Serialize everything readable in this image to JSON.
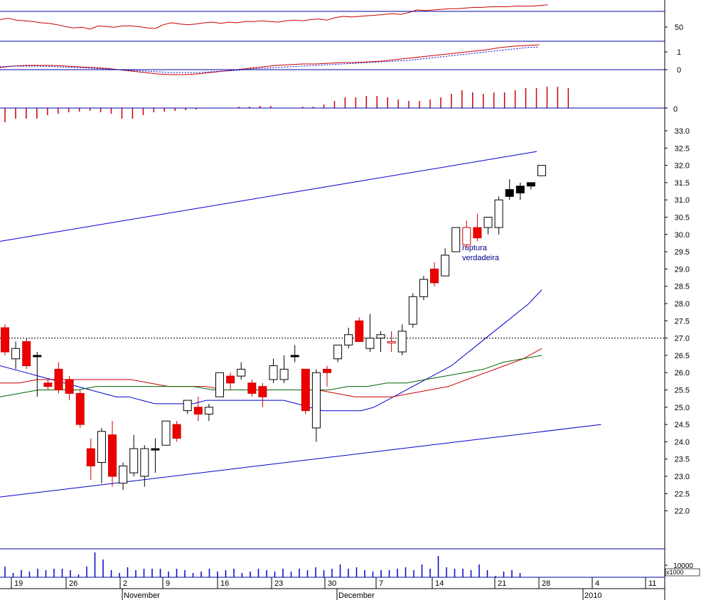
{
  "chart_data": [
    {
      "panel": "rsi",
      "type": "line",
      "yticks": [
        50
      ],
      "series": [
        {
          "values": [
            55,
            57,
            54,
            53,
            52,
            50,
            49,
            47,
            44,
            42,
            43,
            40,
            45,
            44,
            43,
            45,
            45,
            44,
            42,
            41,
            47,
            50,
            48,
            47,
            48,
            50,
            51,
            49,
            51,
            50,
            52,
            52,
            53,
            52,
            51,
            53,
            54,
            53,
            55,
            56,
            54,
            58,
            60,
            59,
            60,
            61,
            62,
            63,
            64,
            63,
            66,
            70,
            69,
            70,
            71,
            72,
            72,
            73,
            74,
            74,
            75,
            75,
            75,
            76,
            76,
            76,
            77,
            78
          ]
        }
      ]
    },
    {
      "panel": "macd",
      "type": "line",
      "yticks": [
        1,
        0
      ],
      "series": [
        {
          "values": [
            0.05,
            0.15,
            0.2,
            0.2,
            0.2,
            0.15,
            0.1,
            0.05,
            0,
            -0.1,
            -0.2,
            -0.3,
            -0.4,
            -0.45,
            -0.45,
            -0.4,
            -0.3,
            -0.2,
            -0.1,
            0,
            0.1,
            0.2,
            0.25,
            0.3,
            0.3,
            0.35,
            0.4,
            0.4,
            0.45,
            0.5,
            0.6,
            0.7,
            0.8,
            0.9,
            1.0,
            1.1,
            1.2,
            1.3,
            1.45,
            1.55,
            1.6,
            1.65
          ]
        },
        {
          "values": [
            0.1,
            0.15,
            0.15,
            0.15,
            0.12,
            0.08,
            0.05,
            0.0,
            -0.05,
            -0.1,
            -0.15,
            -0.2,
            -0.25,
            -0.3,
            -0.3,
            -0.3,
            -0.25,
            -0.2,
            -0.15,
            -0.05,
            0,
            0.05,
            0.1,
            0.15,
            0.2,
            0.25,
            0.3,
            0.35,
            0.4,
            0.45,
            0.5,
            0.55,
            0.65,
            0.75,
            0.85,
            0.95,
            1.05,
            1.15,
            1.25,
            1.35,
            1.45,
            1.5
          ]
        }
      ]
    },
    {
      "panel": "histogram",
      "type": "bar",
      "yticks": [
        0
      ],
      "values": [
        -0.2,
        -0.15,
        -0.15,
        -0.15,
        -0.1,
        -0.08,
        -0.06,
        -0.05,
        -0.04,
        -0.06,
        -0.08,
        -0.15,
        -0.15,
        -0.1,
        -0.06,
        -0.05,
        -0.04,
        -0.03,
        -0.02,
        0,
        0,
        0,
        0.02,
        0.02,
        0.03,
        0.03,
        0,
        0,
        0.02,
        0.02,
        0.05,
        0.1,
        0.15,
        0.15,
        0.17,
        0.17,
        0.15,
        0.12,
        0.1,
        0.1,
        0.12,
        0.15,
        0.2,
        0.25,
        0.22,
        0.2,
        0.22,
        0.22,
        0.25,
        0.28,
        0.28,
        0.3,
        0.3,
        0.28
      ]
    },
    {
      "panel": "price",
      "type": "candlestick",
      "ylim": [
        21.8,
        33.2
      ],
      "yticks": [
        "22.0",
        "22.5",
        "23.0",
        "23.5",
        "24.0",
        "24.5",
        "25.0",
        "25.5",
        "26.0",
        "26.5",
        "27.0",
        "27.5",
        "28.0",
        "28.5",
        "29.0",
        "29.5",
        "30.0",
        "30.5",
        "31.0",
        "31.5",
        "32.0",
        "32.5",
        "33.0"
      ],
      "reference_level": 27.0,
      "annotation": [
        "ruptura",
        "verdadeira"
      ],
      "candles": [
        {
          "o": 27.3,
          "h": 27.4,
          "l": 26.5,
          "c": 26.6,
          "fill": "red"
        },
        {
          "o": 26.4,
          "h": 26.9,
          "l": 26.1,
          "c": 26.7,
          "fill": "white"
        },
        {
          "o": 26.9,
          "h": 27.0,
          "l": 26.1,
          "c": 26.2,
          "fill": "red"
        },
        {
          "o": 26.5,
          "h": 26.6,
          "l": 25.3,
          "c": 26.5,
          "fill": "black"
        },
        {
          "o": 25.7,
          "h": 25.8,
          "l": 25.5,
          "c": 25.6,
          "fill": "red"
        },
        {
          "o": 26.1,
          "h": 26.3,
          "l": 25.4,
          "c": 25.5,
          "fill": "red"
        },
        {
          "o": 25.8,
          "h": 25.9,
          "l": 25.2,
          "c": 25.4,
          "fill": "red"
        },
        {
          "o": 25.4,
          "h": 25.5,
          "l": 24.4,
          "c": 24.5,
          "fill": "red"
        },
        {
          "o": 23.8,
          "h": 24.1,
          "l": 22.9,
          "c": 23.3,
          "fill": "red"
        },
        {
          "o": 23.4,
          "h": 24.4,
          "l": 22.8,
          "c": 24.3,
          "fill": "white"
        },
        {
          "o": 24.2,
          "h": 24.6,
          "l": 22.7,
          "c": 23.0,
          "fill": "red"
        },
        {
          "o": 22.8,
          "h": 23.4,
          "l": 22.6,
          "c": 23.3,
          "fill": "white"
        },
        {
          "o": 23.1,
          "h": 24.2,
          "l": 23.0,
          "c": 23.8,
          "fill": "white"
        },
        {
          "o": 23.0,
          "h": 23.9,
          "l": 22.7,
          "c": 23.8,
          "fill": "white"
        },
        {
          "o": 23.8,
          "h": 24.1,
          "l": 23.1,
          "c": 23.8,
          "fill": "black"
        },
        {
          "o": 23.9,
          "h": 24.6,
          "l": 23.9,
          "c": 24.6,
          "fill": "white"
        },
        {
          "o": 24.5,
          "h": 24.6,
          "l": 24.0,
          "c": 24.1,
          "fill": "red"
        },
        {
          "o": 24.9,
          "h": 25.2,
          "l": 24.8,
          "c": 25.2,
          "fill": "white"
        },
        {
          "o": 25.0,
          "h": 25.3,
          "l": 24.6,
          "c": 24.8,
          "fill": "red"
        },
        {
          "o": 24.8,
          "h": 25.1,
          "l": 24.6,
          "c": 25.0,
          "fill": "white"
        },
        {
          "o": 25.3,
          "h": 26.0,
          "l": 25.3,
          "c": 26.0,
          "fill": "white"
        },
        {
          "o": 25.9,
          "h": 26.0,
          "l": 25.5,
          "c": 25.7,
          "fill": "red"
        },
        {
          "o": 25.9,
          "h": 26.3,
          "l": 25.8,
          "c": 26.1,
          "fill": "white"
        },
        {
          "o": 25.7,
          "h": 25.8,
          "l": 25.3,
          "c": 25.4,
          "fill": "red"
        },
        {
          "o": 25.6,
          "h": 25.7,
          "l": 25.0,
          "c": 25.3,
          "fill": "red"
        },
        {
          "o": 25.8,
          "h": 26.4,
          "l": 25.7,
          "c": 26.2,
          "fill": "white"
        },
        {
          "o": 25.8,
          "h": 26.5,
          "l": 25.7,
          "c": 26.1,
          "fill": "white"
        },
        {
          "o": 26.5,
          "h": 26.8,
          "l": 26.3,
          "c": 26.5,
          "fill": "black"
        },
        {
          "o": 26.1,
          "h": 26.1,
          "l": 24.8,
          "c": 24.9,
          "fill": "red"
        },
        {
          "o": 24.4,
          "h": 26.1,
          "l": 24.0,
          "c": 26.0,
          "fill": "white"
        },
        {
          "o": 26.1,
          "h": 26.2,
          "l": 25.6,
          "c": 26.0,
          "fill": "red"
        },
        {
          "o": 26.4,
          "h": 26.7,
          "l": 26.3,
          "c": 26.8,
          "fill": "white"
        },
        {
          "o": 26.8,
          "h": 27.3,
          "l": 26.7,
          "c": 27.1,
          "fill": "white"
        },
        {
          "o": 27.5,
          "h": 27.6,
          "l": 26.9,
          "c": 26.9,
          "fill": "red"
        },
        {
          "o": 26.7,
          "h": 27.7,
          "l": 26.6,
          "c": 27.0,
          "fill": "white"
        },
        {
          "o": 27.0,
          "h": 27.2,
          "l": 26.6,
          "c": 27.1,
          "fill": "white"
        },
        {
          "o": 26.9,
          "h": 27.2,
          "l": 26.6,
          "c": 26.9,
          "fill": "white_red"
        },
        {
          "o": 26.6,
          "h": 27.4,
          "l": 26.5,
          "c": 27.2,
          "fill": "white"
        },
        {
          "o": 27.4,
          "h": 28.3,
          "l": 27.3,
          "c": 28.2,
          "fill": "white"
        },
        {
          "o": 28.2,
          "h": 28.8,
          "l": 28.1,
          "c": 28.7,
          "fill": "white"
        },
        {
          "o": 29.0,
          "h": 29.2,
          "l": 28.5,
          "c": 28.6,
          "fill": "red"
        },
        {
          "o": 28.8,
          "h": 29.6,
          "l": 28.8,
          "c": 29.4,
          "fill": "white"
        },
        {
          "o": 29.5,
          "h": 30.2,
          "l": 29.5,
          "c": 30.2,
          "fill": "white"
        },
        {
          "o": 29.7,
          "h": 30.4,
          "l": 29.6,
          "c": 30.2,
          "fill": "white_red"
        },
        {
          "o": 30.2,
          "h": 30.6,
          "l": 29.8,
          "c": 29.9,
          "fill": "red"
        },
        {
          "o": 30.2,
          "h": 30.5,
          "l": 30.0,
          "c": 30.5,
          "fill": "white"
        },
        {
          "o": 30.2,
          "h": 31.1,
          "l": 30.0,
          "c": 31.0,
          "fill": "white"
        },
        {
          "o": 31.3,
          "h": 31.6,
          "l": 31.0,
          "c": 31.1,
          "fill": "black"
        },
        {
          "o": 31.4,
          "h": 31.5,
          "l": 31.0,
          "c": 31.2,
          "fill": "black"
        },
        {
          "o": 31.5,
          "h": 31.5,
          "l": 31.3,
          "c": 31.4,
          "fill": "black"
        },
        {
          "o": 31.7,
          "h": 32.0,
          "l": 31.7,
          "c": 32.0,
          "fill": "white"
        }
      ],
      "lines": [
        {
          "name": "blue_trend_upper",
          "color": "#0000cc",
          "points": [
            [
              0,
              29.8
            ],
            [
              50,
              32.4
            ]
          ]
        },
        {
          "name": "blue_trend_lower",
          "color": "#0000cc",
          "points": [
            [
              0,
              22.4
            ],
            [
              56,
              24.5
            ]
          ]
        },
        {
          "name": "ma_blue",
          "color": "#0000cc",
          "values": [
            26.2,
            26.1,
            26.0,
            25.9,
            25.8,
            25.7,
            25.6,
            25.5,
            25.4,
            25.3,
            25.3,
            25.2,
            25.1,
            25.1,
            25.1,
            25.1,
            25.2,
            25.2,
            25.2,
            25.2,
            25.2,
            25.2,
            25.2,
            25.1,
            25.0,
            24.9,
            24.9,
            24.9,
            24.9,
            25.0,
            25.2,
            25.4,
            25.6,
            25.8,
            26.0,
            26.2,
            26.5,
            26.8,
            27.1,
            27.4,
            27.7,
            28.0,
            28.4
          ]
        },
        {
          "name": "ma_red",
          "color": "#cc0000",
          "values": [
            25.7,
            25.7,
            25.8,
            25.8,
            25.8,
            25.8,
            25.8,
            25.8,
            25.7,
            25.6,
            25.6,
            25.6,
            25.5,
            25.5,
            25.5,
            25.5,
            25.5,
            25.5,
            25.4,
            25.3,
            25.3,
            25.3,
            25.4,
            25.5,
            25.6,
            25.8,
            26.0,
            26.2,
            26.4,
            26.7
          ]
        },
        {
          "name": "ma_green",
          "color": "#006600",
          "values": [
            25.3,
            25.4,
            25.5,
            25.5,
            25.5,
            25.6,
            25.6,
            25.6,
            25.6,
            25.6,
            25.6,
            25.5,
            25.5,
            25.5,
            25.5,
            25.5,
            25.5,
            25.5,
            25.6,
            25.6,
            25.7,
            25.7,
            25.8,
            25.9,
            26.0,
            26.1,
            26.3,
            26.4,
            26.5
          ]
        }
      ]
    },
    {
      "panel": "volume",
      "type": "bar",
      "unit_label": "x1000",
      "yticks": [
        "10000"
      ],
      "values": [
        15,
        6,
        10,
        8,
        12,
        10,
        12,
        12,
        10,
        4,
        15,
        35,
        25,
        10,
        6,
        14,
        10,
        12,
        12,
        12,
        8,
        12,
        10,
        6,
        8,
        12,
        8,
        10,
        12,
        6,
        8,
        12,
        10,
        8,
        12,
        8,
        12,
        10,
        14,
        10,
        12,
        18,
        12,
        14,
        10,
        8,
        10,
        10,
        12,
        14,
        10,
        18,
        12,
        30,
        14,
        12,
        12,
        10,
        18,
        10,
        2,
        8,
        10,
        6
      ]
    }
  ],
  "xaxis": {
    "day_labels": [
      "19",
      "26",
      "2",
      "9",
      "16",
      "23",
      "30",
      "7",
      "14",
      "21",
      "28",
      "4",
      "11"
    ],
    "month_labels": [
      "November",
      "December",
      "2010"
    ]
  }
}
